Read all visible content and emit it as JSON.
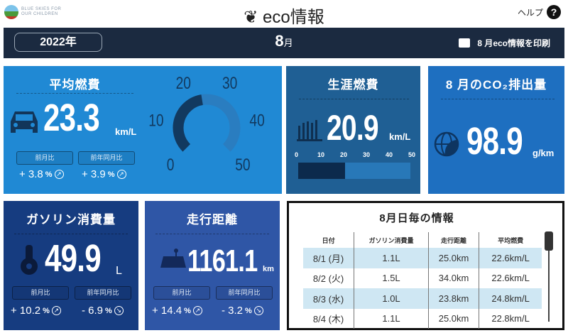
{
  "header": {
    "logo_text": "BLUE SKIES FOR OUR CHILDREN",
    "title": "eco情報",
    "help_label": "ヘルプ",
    "help_icon": "question-circle-icon"
  },
  "bar": {
    "year": "2022年",
    "month": "8",
    "month_suffix": "月",
    "print_label": "8 月eco情報を印刷"
  },
  "avg": {
    "title": "平均燃費",
    "value": "23.3",
    "unit": "km/L",
    "prev_month_label": "前月比",
    "prev_month": "+ 3.8",
    "prev_year_label": "前年同月比",
    "prev_year": "+ 3.9",
    "pct": "%",
    "gauge": {
      "min": 0,
      "max": 50,
      "value": 23.3,
      "ticks": [
        "0",
        "10",
        "20",
        "30",
        "40",
        "50"
      ]
    },
    "color": "#2089d4"
  },
  "lifetime": {
    "title": "生涯燃費",
    "value": "20.9",
    "unit": "km/L",
    "scale": [
      "0",
      "10",
      "20",
      "30",
      "40",
      "50"
    ],
    "bar_value": 20.9,
    "bar_max": 50,
    "color": "#1f5f94"
  },
  "co2": {
    "title": "8 月のCO₂排出量",
    "value": "98.9",
    "unit": "g/km",
    "color": "#1e6fc0"
  },
  "gas": {
    "title": "ガソリン消費量",
    "value": "49.9",
    "unit": "L",
    "prev_month_label": "前月比",
    "prev_month": "+ 10.2",
    "prev_year_label": "前年同月比",
    "prev_year": "- 6.9",
    "pct": "%",
    "color": "#163c80"
  },
  "distance": {
    "title": "走行距離",
    "value": "1161.1",
    "unit": "km",
    "prev_month_label": "前月比",
    "prev_month": "+ 14.4",
    "prev_year_label": "前年同月比",
    "prev_year": "- 3.2",
    "pct": "%",
    "color": "#2f56a6"
  },
  "daily": {
    "title": "8月日毎の情報",
    "headers": [
      "日付",
      "ガソリン消費量",
      "走行距離",
      "平均燃費"
    ],
    "rows": [
      [
        "8/1 (月)",
        "1.1L",
        "25.0km",
        "22.6km/L"
      ],
      [
        "8/2 (火)",
        "1.5L",
        "34.0km",
        "22.6km/L"
      ],
      [
        "8/3 (水)",
        "1.0L",
        "23.8km",
        "24.8km/L"
      ],
      [
        "8/4 (木)",
        "1.1L",
        "25.0km",
        "22.8km/L"
      ]
    ]
  }
}
